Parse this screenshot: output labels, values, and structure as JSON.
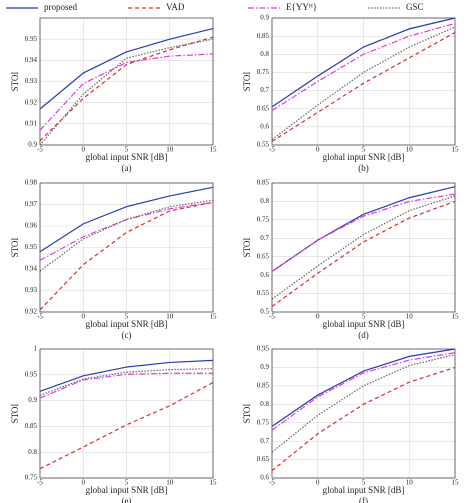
{
  "legend": [
    {
      "name": "proposed",
      "color": "#2a3bb0",
      "dash": "none"
    },
    {
      "name": "VAD",
      "color": "#e02a2a",
      "dash": "4,3"
    },
    {
      "name": "E{YYᴴ}",
      "color": "#e03ae0",
      "dash": "6,2,1.5,2"
    },
    {
      "name": "GSC",
      "color": "#666666",
      "dash": "1.5,1.5"
    }
  ],
  "chart_data": [
    {
      "type": "line",
      "caption": "(a)",
      "xlabel": "global input SNR [dB]",
      "ylabel": "STOI",
      "x": [
        -5,
        0,
        5,
        10,
        15
      ],
      "xlim": [
        -5,
        15
      ],
      "xticks": [
        -5,
        0,
        5,
        10,
        15
      ],
      "ylim": [
        0.9,
        0.96
      ],
      "yticks": [
        0.9,
        0.91,
        0.92,
        0.93,
        0.94,
        0.95
      ],
      "grid": true,
      "series": [
        {
          "values": [
            0.917,
            0.934,
            0.944,
            0.95,
            0.955
          ]
        },
        {
          "values": [
            0.902,
            0.922,
            0.938,
            0.945,
            0.951
          ]
        },
        {
          "values": [
            0.907,
            0.929,
            0.939,
            0.942,
            0.943
          ]
        },
        {
          "values": [
            0.9,
            0.924,
            0.941,
            0.946,
            0.95
          ]
        }
      ]
    },
    {
      "type": "line",
      "caption": "(b)",
      "xlabel": "global input SNR [dB]",
      "ylabel": "STOI",
      "x": [
        -5,
        0,
        5,
        10,
        15
      ],
      "xlim": [
        -5,
        15
      ],
      "xticks": [
        -5,
        0,
        5,
        10,
        15
      ],
      "ylim": [
        0.55,
        0.9
      ],
      "yticks": [
        0.55,
        0.6,
        0.65,
        0.7,
        0.75,
        0.8,
        0.85,
        0.9
      ],
      "grid": true,
      "series": [
        {
          "values": [
            0.655,
            0.74,
            0.82,
            0.87,
            0.9
          ]
        },
        {
          "values": [
            0.56,
            0.64,
            0.72,
            0.79,
            0.86
          ]
        },
        {
          "values": [
            0.645,
            0.725,
            0.8,
            0.85,
            0.885
          ]
        },
        {
          "values": [
            0.565,
            0.66,
            0.75,
            0.82,
            0.875
          ]
        }
      ]
    },
    {
      "type": "line",
      "caption": "(c)",
      "xlabel": "global input SNR [dB]",
      "ylabel": "STOI",
      "x": [
        -5,
        0,
        5,
        10,
        15
      ],
      "xlim": [
        -5,
        15
      ],
      "xticks": [
        -5,
        0,
        5,
        10,
        15
      ],
      "ylim": [
        0.92,
        0.98
      ],
      "yticks": [
        0.92,
        0.93,
        0.94,
        0.95,
        0.96,
        0.97,
        0.98
      ],
      "grid": true,
      "series": [
        {
          "values": [
            0.948,
            0.961,
            0.969,
            0.974,
            0.978
          ]
        },
        {
          "values": [
            0.921,
            0.942,
            0.957,
            0.967,
            0.971
          ]
        },
        {
          "values": [
            0.944,
            0.955,
            0.963,
            0.968,
            0.971
          ]
        },
        {
          "values": [
            0.939,
            0.954,
            0.963,
            0.969,
            0.972
          ]
        }
      ]
    },
    {
      "type": "line",
      "caption": "(d)",
      "xlabel": "global input SNR [dB]",
      "ylabel": "STOI",
      "x": [
        -5,
        0,
        5,
        10,
        15
      ],
      "xlim": [
        -5,
        15
      ],
      "xticks": [
        -5,
        0,
        5,
        10,
        15
      ],
      "ylim": [
        0.5,
        0.85
      ],
      "yticks": [
        0.5,
        0.55,
        0.6,
        0.65,
        0.7,
        0.75,
        0.8,
        0.85
      ],
      "grid": true,
      "series": [
        {
          "values": [
            0.61,
            0.695,
            0.765,
            0.81,
            0.84
          ]
        },
        {
          "values": [
            0.515,
            0.605,
            0.69,
            0.755,
            0.8
          ]
        },
        {
          "values": [
            0.61,
            0.695,
            0.76,
            0.8,
            0.82
          ]
        },
        {
          "values": [
            0.535,
            0.625,
            0.71,
            0.775,
            0.815
          ]
        }
      ]
    },
    {
      "type": "line",
      "caption": "(e)",
      "xlabel": "global input SNR [dB]",
      "ylabel": "STOI",
      "x": [
        -5,
        0,
        5,
        10,
        15
      ],
      "xlim": [
        -5,
        15
      ],
      "xticks": [
        -5,
        0,
        5,
        10,
        15
      ],
      "ylim": [
        0.75,
        1
      ],
      "yticks": [
        0.75,
        0.8,
        0.85,
        0.9,
        0.95,
        1
      ],
      "grid": true,
      "series": [
        {
          "values": [
            0.918,
            0.948,
            0.965,
            0.974,
            0.978
          ]
        },
        {
          "values": [
            0.768,
            0.81,
            0.853,
            0.89,
            0.935
          ]
        },
        {
          "values": [
            0.905,
            0.94,
            0.951,
            0.953,
            0.953
          ]
        },
        {
          "values": [
            0.91,
            0.942,
            0.955,
            0.96,
            0.962
          ]
        }
      ]
    },
    {
      "type": "line",
      "caption": "(f)",
      "xlabel": "global input SNR [dB]",
      "ylabel": "STOI",
      "x": [
        -5,
        0,
        5,
        10,
        15
      ],
      "xlim": [
        -5,
        15
      ],
      "xticks": [
        -5,
        0,
        5,
        10,
        15
      ],
      "ylim": [
        0.6,
        0.95
      ],
      "yticks": [
        0.6,
        0.65,
        0.7,
        0.75,
        0.8,
        0.85,
        0.9,
        0.95
      ],
      "grid": true,
      "series": [
        {
          "values": [
            0.74,
            0.825,
            0.89,
            0.93,
            0.95
          ]
        },
        {
          "values": [
            0.62,
            0.72,
            0.8,
            0.86,
            0.9
          ]
        },
        {
          "values": [
            0.73,
            0.82,
            0.885,
            0.92,
            0.94
          ]
        },
        {
          "values": [
            0.67,
            0.77,
            0.85,
            0.905,
            0.935
          ]
        }
      ]
    }
  ]
}
